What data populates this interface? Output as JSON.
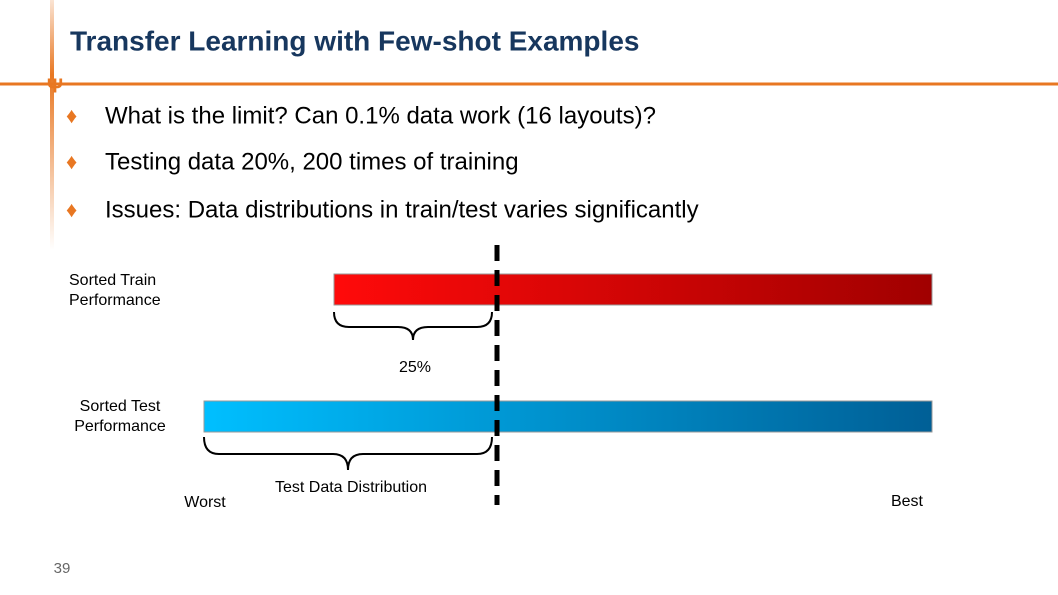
{
  "header": {
    "title": "Transfer Learning with Few-shot Examples"
  },
  "bullets": [
    "What is the limit? Can 0.1% data work (16 layouts)?",
    "Testing data 20%, 200 times of training",
    "Issues: Data distributions in train/test varies significantly"
  ],
  "diagram": {
    "train_label": [
      "Sorted Train",
      "Performance"
    ],
    "test_label": [
      "Sorted Test",
      "Performance"
    ],
    "train_brace_label": "25%",
    "test_brace_label": "Test Data Distribution",
    "worst": "Worst",
    "best": "Best"
  },
  "footer": {
    "page_number": "39"
  }
}
